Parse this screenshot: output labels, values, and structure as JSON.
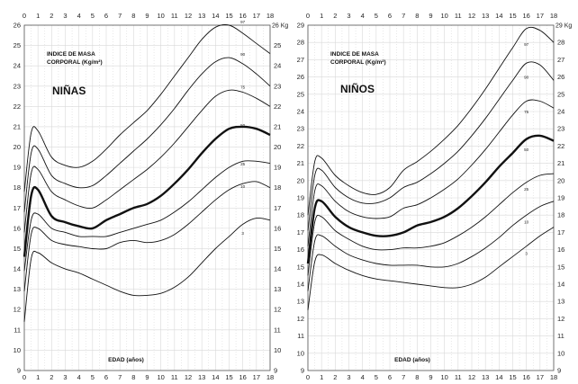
{
  "chart_data": [
    {
      "type": "line",
      "panel_title": "NIÑAS",
      "subtitle_line1": "INDICE DE MASA",
      "subtitle_line2": "CORPORAL (Kg/m²)",
      "xlabel": "EDAD (años)",
      "y_unit_label": "26 Kg",
      "xlim": [
        0,
        18
      ],
      "ylim": [
        9,
        26
      ],
      "x_ticks": [
        "0",
        "1",
        "2",
        "3",
        "4",
        "5",
        "6",
        "7",
        "8",
        "9",
        "10",
        "11",
        "12",
        "13",
        "14",
        "15",
        "16",
        "17",
        "18"
      ],
      "y_ticks_left": [
        "9",
        "10",
        "11",
        "12",
        "13",
        "14",
        "15",
        "16",
        "17",
        "18",
        "19",
        "20",
        "21",
        "22",
        "23",
        "24",
        "25",
        "26"
      ],
      "y_ticks_right": [
        "9",
        "10",
        "11",
        "12",
        "13",
        "14",
        "15",
        "16",
        "17",
        "18",
        "19",
        "20",
        "21",
        "22",
        "23",
        "24",
        "25"
      ],
      "grid": true,
      "series": [
        {
          "name": "3",
          "bold": false,
          "x": [
            0,
            0.5,
            1,
            2,
            3,
            4,
            5,
            6,
            7,
            8,
            9,
            10,
            11,
            12,
            13,
            14,
            15,
            16,
            17,
            18
          ],
          "y": [
            11.4,
            14.5,
            14.8,
            14.3,
            14.0,
            13.8,
            13.5,
            13.2,
            12.9,
            12.7,
            12.7,
            12.8,
            13.1,
            13.6,
            14.3,
            15.0,
            15.6,
            16.2,
            16.5,
            16.4
          ]
        },
        {
          "name": "10",
          "bold": false,
          "x": [
            0,
            0.5,
            1,
            2,
            3,
            4,
            5,
            6,
            7,
            8,
            9,
            10,
            11,
            12,
            13,
            14,
            15,
            16,
            17,
            18
          ],
          "y": [
            12.9,
            15.7,
            16.0,
            15.4,
            15.2,
            15.1,
            15.0,
            15.0,
            15.3,
            15.4,
            15.3,
            15.4,
            15.7,
            16.2,
            16.8,
            17.4,
            17.9,
            18.2,
            18.3,
            18.0
          ]
        },
        {
          "name": "25",
          "bold": false,
          "x": [
            0,
            0.5,
            1,
            2,
            3,
            4,
            5,
            6,
            7,
            8,
            9,
            10,
            11,
            12,
            13,
            14,
            15,
            16,
            17,
            18
          ],
          "y": [
            13.9,
            16.4,
            16.7,
            16.0,
            15.8,
            15.6,
            15.6,
            15.6,
            15.8,
            16.0,
            16.2,
            16.4,
            16.8,
            17.3,
            17.9,
            18.5,
            19.0,
            19.3,
            19.3,
            19.2
          ]
        },
        {
          "name": "50",
          "bold": true,
          "x": [
            0,
            0.5,
            1,
            2,
            3,
            4,
            5,
            6,
            7,
            8,
            9,
            10,
            11,
            12,
            13,
            14,
            15,
            16,
            17,
            18
          ],
          "y": [
            14.6,
            17.6,
            17.9,
            16.6,
            16.3,
            16.1,
            16.0,
            16.4,
            16.7,
            17.0,
            17.2,
            17.6,
            18.2,
            18.9,
            19.7,
            20.4,
            20.9,
            21.0,
            20.9,
            20.6
          ]
        },
        {
          "name": "75",
          "bold": false,
          "x": [
            0,
            0.5,
            1,
            2,
            3,
            4,
            5,
            6,
            7,
            8,
            9,
            10,
            11,
            12,
            13,
            14,
            15,
            16,
            17,
            18
          ],
          "y": [
            15.8,
            18.7,
            18.9,
            17.8,
            17.4,
            17.1,
            17.0,
            17.4,
            17.9,
            18.4,
            18.9,
            19.5,
            20.2,
            21.0,
            21.8,
            22.5,
            22.8,
            22.7,
            22.4,
            22.0
          ]
        },
        {
          "name": "90",
          "bold": false,
          "x": [
            0,
            0.5,
            1,
            2,
            3,
            4,
            5,
            6,
            7,
            8,
            9,
            10,
            11,
            12,
            13,
            14,
            15,
            16,
            17,
            18
          ],
          "y": [
            16.8,
            19.7,
            19.9,
            18.6,
            18.2,
            18.0,
            18.1,
            18.6,
            19.2,
            19.8,
            20.4,
            21.1,
            21.9,
            22.8,
            23.6,
            24.2,
            24.4,
            24.1,
            23.6,
            23.0
          ]
        },
        {
          "name": "97",
          "bold": false,
          "x": [
            0,
            0.5,
            1,
            2,
            3,
            4,
            5,
            6,
            7,
            8,
            9,
            10,
            11,
            12,
            13,
            14,
            15,
            16,
            17,
            18
          ],
          "y": [
            17.8,
            20.7,
            20.8,
            19.5,
            19.1,
            19.0,
            19.3,
            19.9,
            20.6,
            21.2,
            21.8,
            22.6,
            23.5,
            24.4,
            25.3,
            25.9,
            26.0,
            25.6,
            25.1,
            24.6
          ]
        }
      ]
    },
    {
      "type": "line",
      "panel_title": "NIÑOS",
      "subtitle_line1": "INDICE DE MASA",
      "subtitle_line2": "CORPORAL (Kg/m²)",
      "xlabel": "EDAD (años)",
      "y_unit_label": "29 Kg",
      "xlim": [
        0,
        18
      ],
      "ylim": [
        9,
        29
      ],
      "x_ticks": [
        "0",
        "1",
        "2",
        "3",
        "4",
        "5",
        "6",
        "7",
        "8",
        "9",
        "10",
        "11",
        "12",
        "13",
        "14",
        "15",
        "16",
        "17",
        "18"
      ],
      "y_ticks_left": [
        "9",
        "10",
        "11",
        "12",
        "13",
        "14",
        "15",
        "16",
        "17",
        "18",
        "19",
        "20",
        "21",
        "22",
        "23",
        "24",
        "25",
        "26",
        "27",
        "28",
        "29"
      ],
      "y_ticks_right": [
        "9",
        "10",
        "11",
        "12",
        "13",
        "14",
        "15",
        "16",
        "17",
        "18",
        "19",
        "20",
        "21",
        "22",
        "23",
        "24",
        "25",
        "26",
        "27",
        "28"
      ],
      "grid": true,
      "series": [
        {
          "name": "3",
          "bold": false,
          "x": [
            0,
            0.5,
            1,
            2,
            3,
            4,
            5,
            6,
            7,
            8,
            9,
            10,
            11,
            12,
            13,
            14,
            15,
            16,
            17,
            18
          ],
          "y": [
            12.5,
            15.3,
            15.7,
            15.2,
            14.8,
            14.5,
            14.3,
            14.2,
            14.1,
            14.0,
            13.9,
            13.8,
            13.8,
            14.0,
            14.4,
            15.0,
            15.6,
            16.2,
            16.8,
            17.3
          ]
        },
        {
          "name": "10",
          "bold": false,
          "x": [
            0,
            0.5,
            1,
            2,
            3,
            4,
            5,
            6,
            7,
            8,
            9,
            10,
            11,
            12,
            13,
            14,
            15,
            16,
            17,
            18
          ],
          "y": [
            13.6,
            16.5,
            16.8,
            16.2,
            15.7,
            15.4,
            15.2,
            15.1,
            15.1,
            15.1,
            15.0,
            15.0,
            15.2,
            15.6,
            16.1,
            16.7,
            17.4,
            18.0,
            18.5,
            18.8
          ]
        },
        {
          "name": "25",
          "bold": false,
          "x": [
            0,
            0.5,
            1,
            2,
            3,
            4,
            5,
            6,
            7,
            8,
            9,
            10,
            11,
            12,
            13,
            14,
            15,
            16,
            17,
            18
          ],
          "y": [
            14.5,
            17.6,
            17.9,
            17.1,
            16.6,
            16.2,
            16.0,
            16.0,
            16.1,
            16.1,
            16.2,
            16.4,
            16.8,
            17.3,
            17.9,
            18.6,
            19.3,
            19.9,
            20.3,
            20.4
          ]
        },
        {
          "name": "50",
          "bold": true,
          "x": [
            0,
            0.5,
            1,
            2,
            3,
            4,
            5,
            6,
            7,
            8,
            9,
            10,
            11,
            12,
            13,
            14,
            15,
            16,
            17,
            18
          ],
          "y": [
            15.2,
            18.4,
            18.8,
            17.9,
            17.3,
            17.0,
            16.8,
            16.8,
            17.0,
            17.4,
            17.6,
            17.9,
            18.4,
            19.1,
            19.9,
            20.8,
            21.6,
            22.4,
            22.6,
            22.3
          ]
        },
        {
          "name": "75",
          "bold": false,
          "x": [
            0,
            0.5,
            1,
            2,
            3,
            4,
            5,
            6,
            7,
            8,
            9,
            10,
            11,
            12,
            13,
            14,
            15,
            16,
            17,
            18
          ],
          "y": [
            16.2,
            19.4,
            19.7,
            18.8,
            18.2,
            17.9,
            17.8,
            17.9,
            18.4,
            18.6,
            19.0,
            19.5,
            20.1,
            20.9,
            21.8,
            22.8,
            23.8,
            24.6,
            24.6,
            24.2
          ]
        },
        {
          "name": "90",
          "bold": false,
          "x": [
            0,
            0.5,
            1,
            2,
            3,
            4,
            5,
            6,
            7,
            8,
            9,
            10,
            11,
            12,
            13,
            14,
            15,
            16,
            17,
            18
          ],
          "y": [
            17.1,
            20.3,
            20.6,
            19.6,
            19.0,
            18.7,
            18.7,
            19.0,
            19.6,
            19.9,
            20.4,
            21.0,
            21.7,
            22.6,
            23.6,
            24.7,
            25.8,
            26.8,
            26.7,
            25.8
          ]
        },
        {
          "name": "97",
          "bold": false,
          "x": [
            0,
            0.5,
            1,
            2,
            3,
            4,
            5,
            6,
            7,
            8,
            9,
            10,
            11,
            12,
            13,
            14,
            15,
            16,
            17,
            18
          ],
          "y": [
            18.0,
            21.1,
            21.3,
            20.3,
            19.7,
            19.3,
            19.2,
            19.6,
            20.6,
            21.1,
            21.7,
            22.4,
            23.2,
            24.2,
            25.3,
            26.5,
            27.7,
            28.8,
            28.7,
            28.0
          ]
        }
      ]
    }
  ]
}
